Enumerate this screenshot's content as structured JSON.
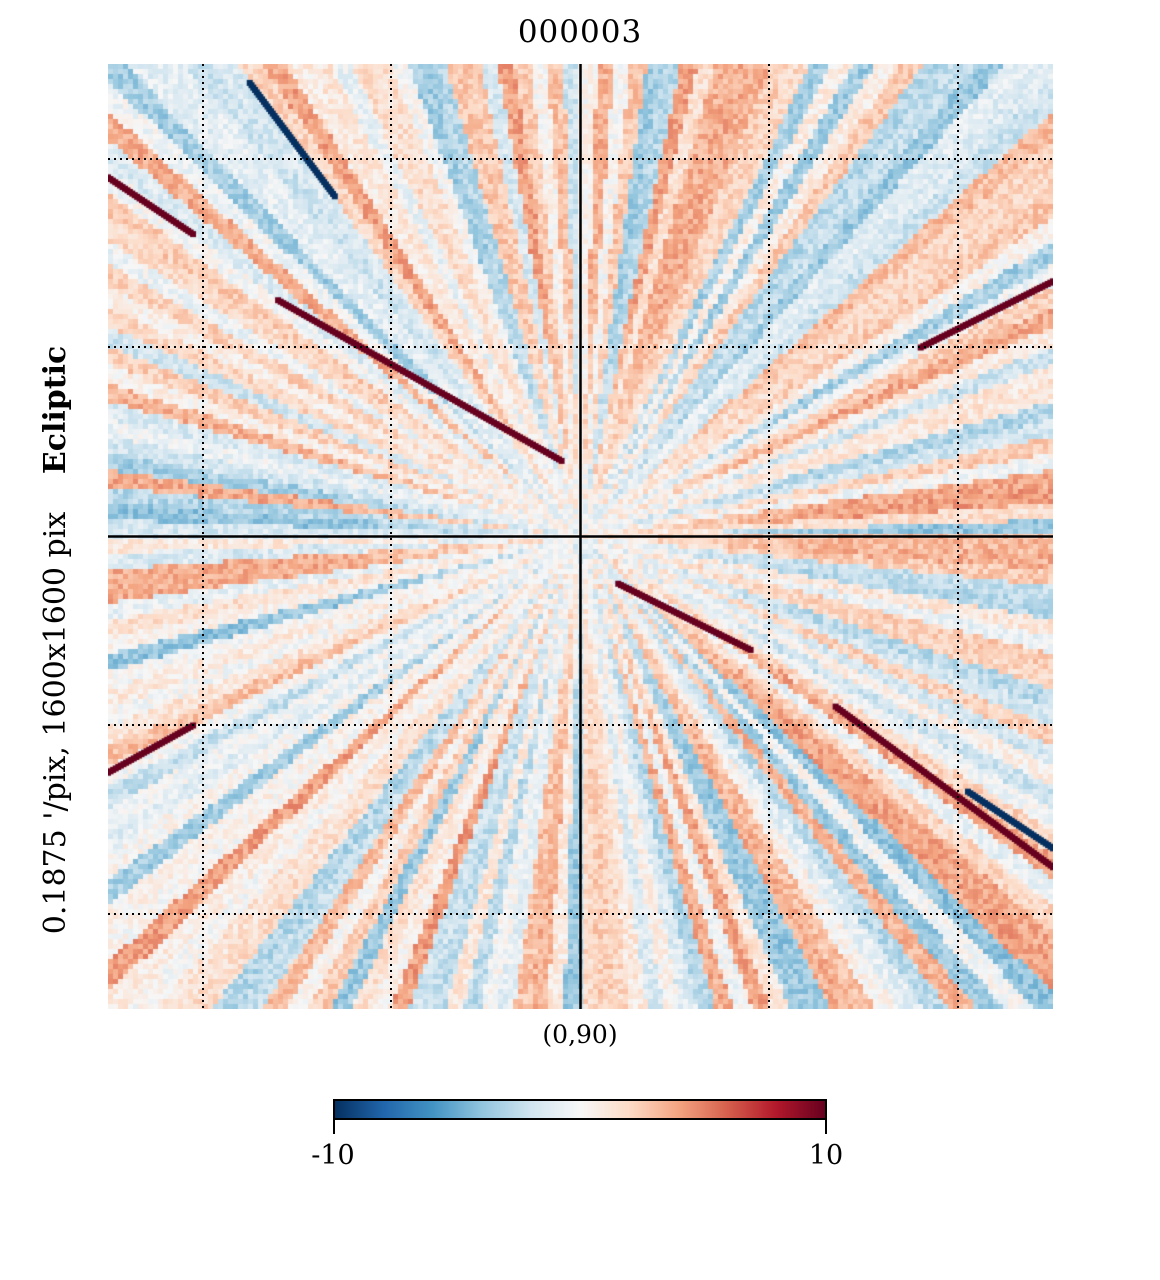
{
  "title": "000003",
  "ylabel": {
    "resolution": "0.1875 '/pix,",
    "size": "1600x1600 pix",
    "coord": "Ecliptic"
  },
  "center_label": "(0,90)",
  "colorbar": {
    "min_label": "-10",
    "max_label": "10",
    "colormap": "RdBu_r",
    "stops": [
      "#053061",
      "#2166ac",
      "#4393c3",
      "#92c5de",
      "#d1e5f0",
      "#f7f7f7",
      "#fddbc7",
      "#f4a582",
      "#d6604d",
      "#b2182b",
      "#67001f"
    ]
  },
  "chart_data": {
    "type": "heatmap",
    "title": "000003",
    "projection": "gnomonic",
    "center": "(0,90)",
    "coord": "Ecliptic",
    "resolution_arcmin_per_pix": 0.1875,
    "xsize": 1600,
    "ysize": 1600,
    "colorbar_range": [
      -10,
      10
    ],
    "graticule": "dotted",
    "features": [
      {
        "type": "radial-streaks",
        "description": "alternating positive/negative rays radiating from the pole"
      },
      {
        "type": "strong-positive-line",
        "from_frac": [
          0.0,
          0.12
        ],
        "to_frac": [
          0.09,
          0.18
        ]
      },
      {
        "type": "strong-positive-line",
        "from_frac": [
          0.18,
          0.25
        ],
        "to_frac": [
          0.48,
          0.42
        ]
      },
      {
        "type": "strong-positive-line",
        "from_frac": [
          1.0,
          0.23
        ],
        "to_frac": [
          0.86,
          0.3
        ]
      },
      {
        "type": "strong-positive-line",
        "from_frac": [
          0.54,
          0.55
        ],
        "to_frac": [
          0.68,
          0.62
        ]
      },
      {
        "type": "strong-positive-line",
        "from_frac": [
          0.77,
          0.68
        ],
        "to_frac": [
          1.0,
          0.85
        ]
      },
      {
        "type": "strong-positive-line",
        "from_frac": [
          0.0,
          0.75
        ],
        "to_frac": [
          0.09,
          0.7
        ]
      },
      {
        "type": "strong-negative-line",
        "from_frac": [
          0.15,
          0.02
        ],
        "to_frac": [
          0.24,
          0.14
        ]
      },
      {
        "type": "strong-negative-line",
        "from_frac": [
          0.91,
          0.77
        ],
        "to_frac": [
          1.0,
          0.83
        ]
      }
    ]
  }
}
